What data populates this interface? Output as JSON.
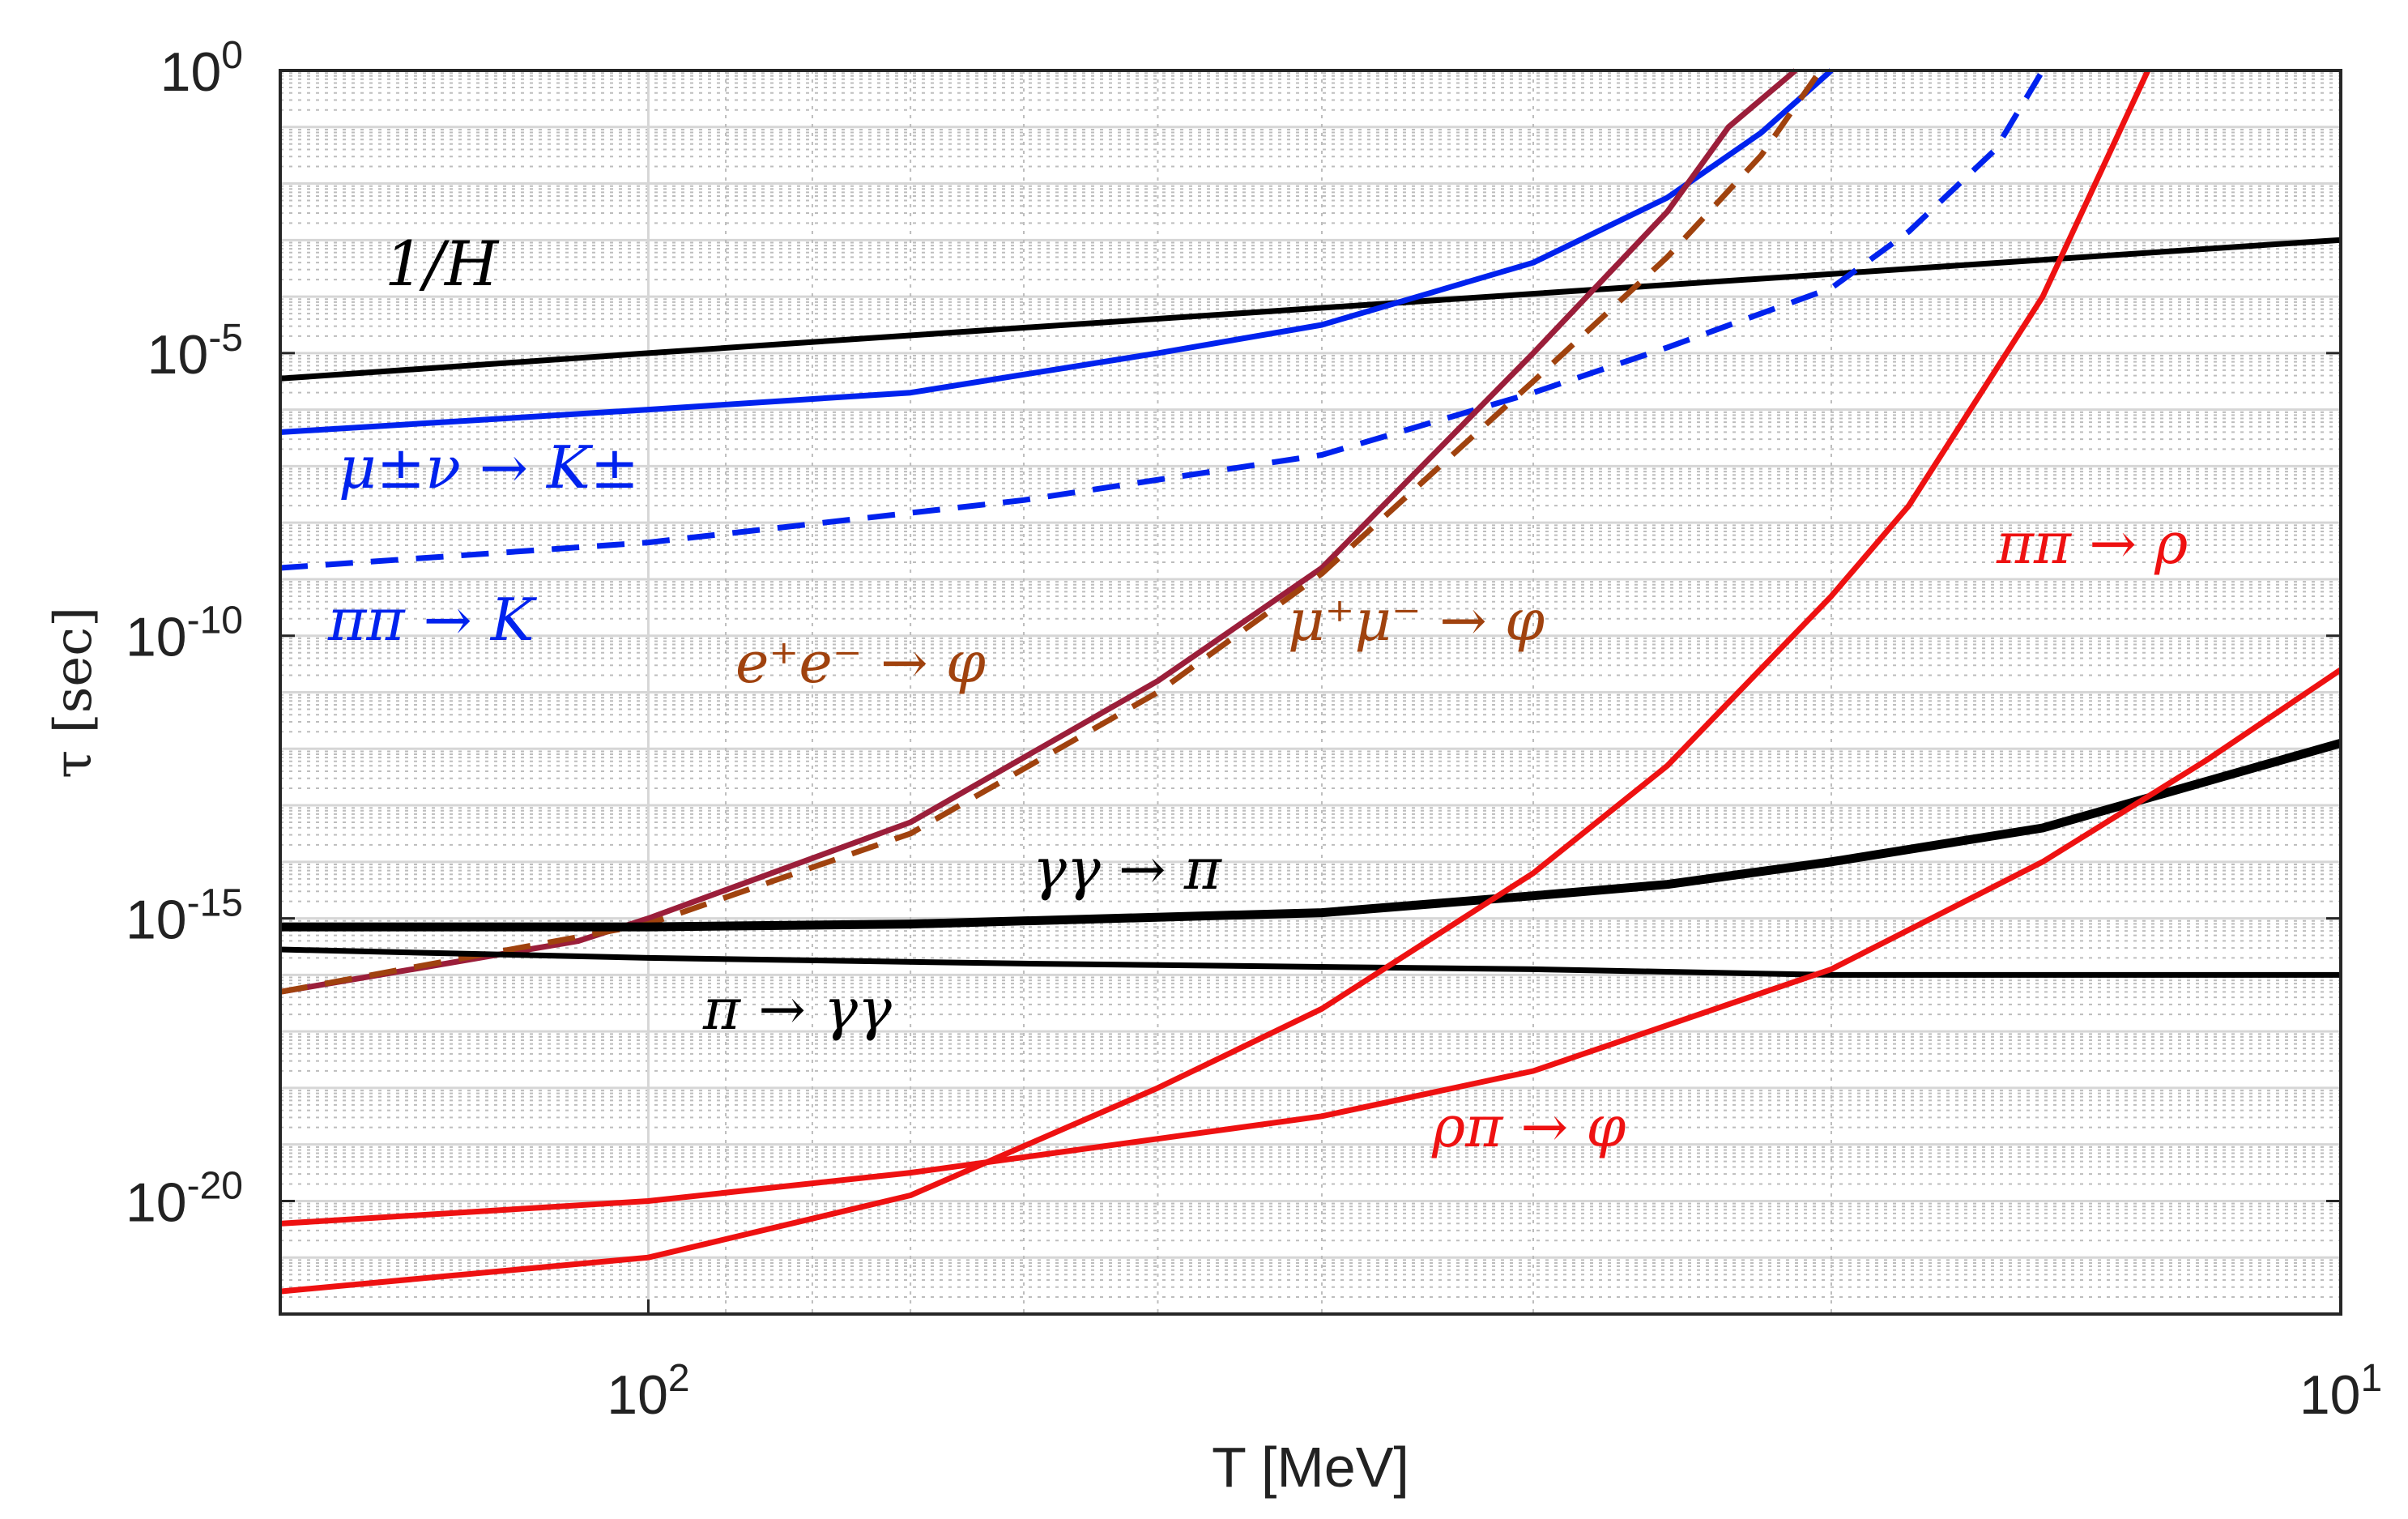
{
  "chart_data": {
    "type": "line",
    "title": "",
    "xlabel": "T [MeV]",
    "ylabel": "τ [sec]",
    "xscale": "log-reversed",
    "yscale": "log",
    "xlim": [
      165,
      10
    ],
    "ylim": [
      1e-22,
      1
    ],
    "grid": true,
    "x_ticks": [
      {
        "value": 100,
        "base": "10",
        "exp": "2"
      },
      {
        "value": 10,
        "base": "10",
        "exp": "1"
      }
    ],
    "y_ticks": [
      {
        "value": 1,
        "base": "10",
        "exp": "0"
      },
      {
        "value": 1e-05,
        "base": "10",
        "exp": "-5"
      },
      {
        "value": 1e-10,
        "base": "10",
        "exp": "-10"
      },
      {
        "value": 1e-15,
        "base": "10",
        "exp": "-15"
      },
      {
        "value": 1e-20,
        "base": "10",
        "exp": "-20"
      }
    ],
    "series": [
      {
        "name": "1/H",
        "label": "1/H",
        "color": "#000000",
        "style": "solid",
        "width": "normal",
        "x": [
          165,
          100,
          60,
          30,
          20,
          15,
          11,
          10
        ],
        "y": [
          -5.45,
          -5.0,
          -4.55,
          -3.95,
          -3.6,
          -3.35,
          -3.08,
          -3.0
        ]
      },
      {
        "name": "mu_nu_to_K",
        "label": "μ±ν → K±",
        "color": "#0022ee",
        "style": "solid",
        "width": "normal",
        "x": [
          165,
          100,
          70,
          50,
          40,
          30,
          25,
          22,
          20
        ],
        "y": [
          -6.4,
          -6.0,
          -5.7,
          -5.0,
          -4.5,
          -3.4,
          -2.25,
          -1.1,
          0.0
        ]
      },
      {
        "name": "pipi_to_K",
        "label": "ππ → K",
        "color": "#0022ee",
        "style": "dashed",
        "width": "normal",
        "x": [
          165,
          100,
          60,
          40,
          30,
          25,
          20,
          18,
          16,
          15
        ],
        "y": [
          -8.8,
          -8.35,
          -7.6,
          -6.8,
          -5.7,
          -4.9,
          -3.85,
          -2.85,
          -1.4,
          0.0
        ]
      },
      {
        "name": "ee_to_phi",
        "label": "e⁺e⁻ → φ",
        "color": "#9b1e3a",
        "style": "solid",
        "width": "normal",
        "x": [
          165,
          110,
          100,
          70,
          50,
          40,
          30,
          25,
          23,
          21
        ],
        "y": [
          -16.3,
          -15.4,
          -15.0,
          -13.3,
          -10.8,
          -8.8,
          -5.0,
          -2.5,
          -1.0,
          0.0
        ]
      },
      {
        "name": "mumu_to_phi",
        "label": "μ⁺μ⁻ → φ",
        "color": "#a0420e",
        "style": "dashed",
        "width": "normal",
        "x": [
          165,
          100,
          70,
          50,
          40,
          30,
          25,
          22,
          20.3
        ],
        "y": [
          -16.3,
          -15.1,
          -13.5,
          -11.0,
          -8.9,
          -5.5,
          -3.3,
          -1.5,
          0.0
        ]
      },
      {
        "name": "gammagamma_to_pi",
        "label": "γγ → π",
        "color": "#000000",
        "style": "solid",
        "width": "thick",
        "x": [
          165,
          100,
          70,
          40,
          30,
          25,
          20,
          15,
          10
        ],
        "y": [
          -15.15,
          -15.15,
          -15.1,
          -14.9,
          -14.6,
          -14.4,
          -14.0,
          -13.4,
          -11.9
        ]
      },
      {
        "name": "pi_to_gammagamma",
        "label": "π → γγ",
        "color": "#000000",
        "style": "solid",
        "width": "normal",
        "x": [
          165,
          100,
          60,
          30,
          20,
          10
        ],
        "y": [
          -15.55,
          -15.7,
          -15.8,
          -15.9,
          -16.0,
          -16.0
        ]
      },
      {
        "name": "pipi_to_rho",
        "label": "ππ → ρ",
        "color": "#ee1111",
        "style": "solid",
        "width": "normal",
        "x": [
          165,
          100,
          70,
          50,
          40,
          30,
          25,
          20,
          18,
          15,
          13
        ],
        "y": [
          -21.6,
          -21.0,
          -19.9,
          -18.0,
          -16.6,
          -14.2,
          -12.3,
          -9.3,
          -7.7,
          -4.0,
          0.0
        ]
      },
      {
        "name": "rhopi_to_phi",
        "label": "ρπ → φ",
        "color": "#ee1111",
        "style": "solid",
        "width": "normal",
        "x": [
          165,
          100,
          70,
          50,
          40,
          30,
          20,
          15,
          12,
          10
        ],
        "y": [
          -20.4,
          -20.0,
          -19.5,
          -18.9,
          -18.5,
          -17.7,
          -15.9,
          -14.0,
          -12.2,
          -10.6
        ]
      }
    ],
    "annotations": [
      {
        "text": "1/H",
        "color": "#000000",
        "at": "above black line near x-left"
      },
      {
        "text": "μ±ν → K±",
        "color": "#0022ee",
        "at": "below blue solid line, left"
      },
      {
        "text": "ππ → K",
        "color": "#0022ee",
        "at": "below blue dashed line, left"
      },
      {
        "text": "e⁺e⁻ → φ",
        "color": "#a0420e",
        "at": "left of brown curves"
      },
      {
        "text": "μ⁺μ⁻ → φ",
        "color": "#a0420e",
        "at": "right of brown curves"
      },
      {
        "text": "ππ → ρ",
        "color": "#ee1111",
        "at": "upper right"
      },
      {
        "text": "γγ → π",
        "color": "#000000",
        "at": "above thick black line"
      },
      {
        "text": "π → γγ",
        "color": "#000000",
        "at": "below thin black line"
      },
      {
        "text": "ρπ → φ",
        "color": "#ee1111",
        "at": "lower middle"
      }
    ]
  }
}
